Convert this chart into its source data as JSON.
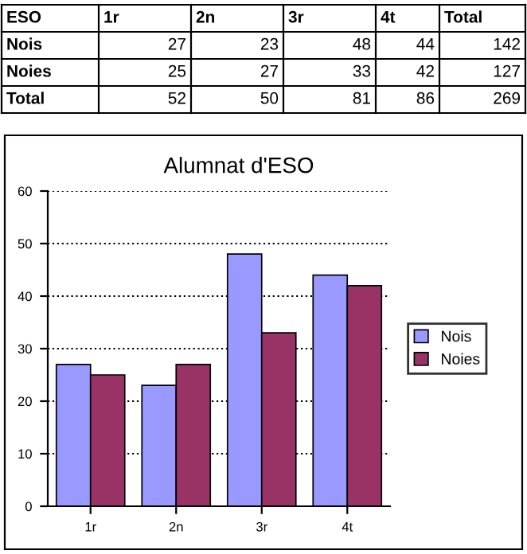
{
  "chart_data": [
    {
      "type": "other",
      "annotations": [
        "ESO",
        "1r",
        "2n",
        "3r",
        "4t",
        "Total",
        "Nois",
        "27",
        "23",
        "48",
        "44",
        "142",
        "Noies",
        "25",
        "27",
        "33",
        "42",
        "127",
        "Total",
        "52",
        "50",
        "81",
        "86",
        "269"
      ]
    },
    {
      "type": "bar",
      "title": "Alumnat d'ESO",
      "categories": [
        "1r",
        "2n",
        "3r",
        "4t"
      ],
      "series": [
        {
          "name": "Nois",
          "color": "#9999ff",
          "values": [
            27,
            23,
            48,
            44
          ]
        },
        {
          "name": "Noies",
          "color": "#993366",
          "values": [
            25,
            27,
            33,
            42
          ]
        }
      ],
      "ylim": [
        0,
        60
      ],
      "yticks": [
        0,
        10,
        20,
        30,
        40,
        50,
        60
      ],
      "grid": "y",
      "legend": "right"
    }
  ]
}
